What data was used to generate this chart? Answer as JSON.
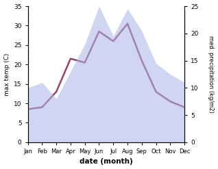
{
  "months": [
    1,
    2,
    3,
    4,
    5,
    6,
    7,
    8,
    9,
    10,
    11,
    12
  ],
  "month_labels": [
    "Jan",
    "Feb",
    "Mar",
    "Apr",
    "May",
    "Jun",
    "Jul",
    "Aug",
    "Sep",
    "Oct",
    "Nov",
    "Dec"
  ],
  "temp_max": [
    8.5,
    9.0,
    13.0,
    21.5,
    20.5,
    28.5,
    26.0,
    30.5,
    21.0,
    13.0,
    10.5,
    9.0
  ],
  "precipitation": [
    10.0,
    11.0,
    8.0,
    13.0,
    18.0,
    25.0,
    19.5,
    24.5,
    20.5,
    14.5,
    12.5,
    11.0
  ],
  "temp_ylim": [
    0,
    35
  ],
  "temp_yticks": [
    0,
    5,
    10,
    15,
    20,
    25,
    30,
    35
  ],
  "precip_ylim": [
    0,
    25
  ],
  "precip_yticks": [
    0,
    5,
    10,
    15,
    20,
    25
  ],
  "temp_color": "#994466",
  "precip_fill_color": "#aab4e8",
  "xlabel": "date (month)",
  "ylabel_left": "max temp (C)",
  "ylabel_right": "med. precipitation (kg/m2)",
  "background_color": "#ffffff",
  "temp_linewidth": 1.8,
  "precip_alpha": 0.55,
  "figwidth": 3.18,
  "figheight": 2.47,
  "dpi": 100
}
